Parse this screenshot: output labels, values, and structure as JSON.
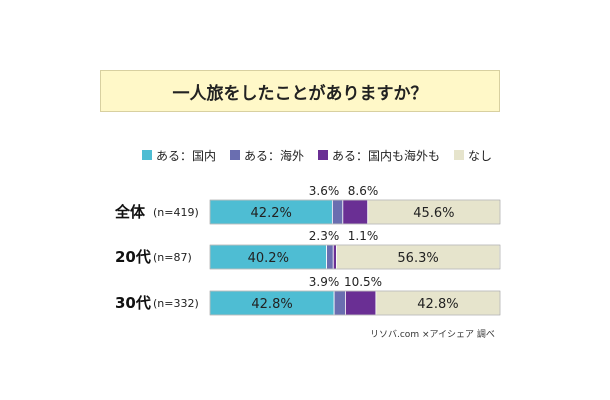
{
  "title": "一人旅をしたことがありますか？",
  "footer": "リソバ.com ×アイシェア 調べ",
  "colors": {
    "domestic": "#4ebdd3",
    "overseas": "#6a6eb0",
    "both": "#6a2f94",
    "none": "#e6e4cc",
    "title_bg": "#fff8c8"
  },
  "chart_data": {
    "type": "bar",
    "orientation": "horizontal",
    "stacked": true,
    "title": "一人旅をしたことがありますか？",
    "categories": [
      "全体",
      "20代",
      "30代"
    ],
    "sample_sizes": [
      "(n=419)",
      "(n=87)",
      "(n=332)"
    ],
    "series": [
      {
        "name": "ある：国内",
        "color": "#4ebdd3",
        "values": [
          42.2,
          40.2,
          42.8
        ],
        "labels": [
          "42.2%",
          "40.2%",
          "42.8%"
        ]
      },
      {
        "name": "ある：海外",
        "color": "#6a6eb0",
        "values": [
          3.6,
          2.3,
          3.9
        ],
        "labels": [
          "3.6%",
          "2.3%",
          "3.9%"
        ]
      },
      {
        "name": "ある：国内も海外も",
        "color": "#6a2f94",
        "values": [
          8.6,
          1.1,
          10.5
        ],
        "labels": [
          "8.6%",
          "1.1%",
          "10.5%"
        ]
      },
      {
        "name": "なし",
        "color": "#e6e4cc",
        "values": [
          45.6,
          56.3,
          42.8
        ],
        "labels": [
          "45.6%",
          "56.3%",
          "42.8%"
        ]
      }
    ],
    "xlim": [
      0,
      100
    ],
    "legend_position": "top"
  }
}
